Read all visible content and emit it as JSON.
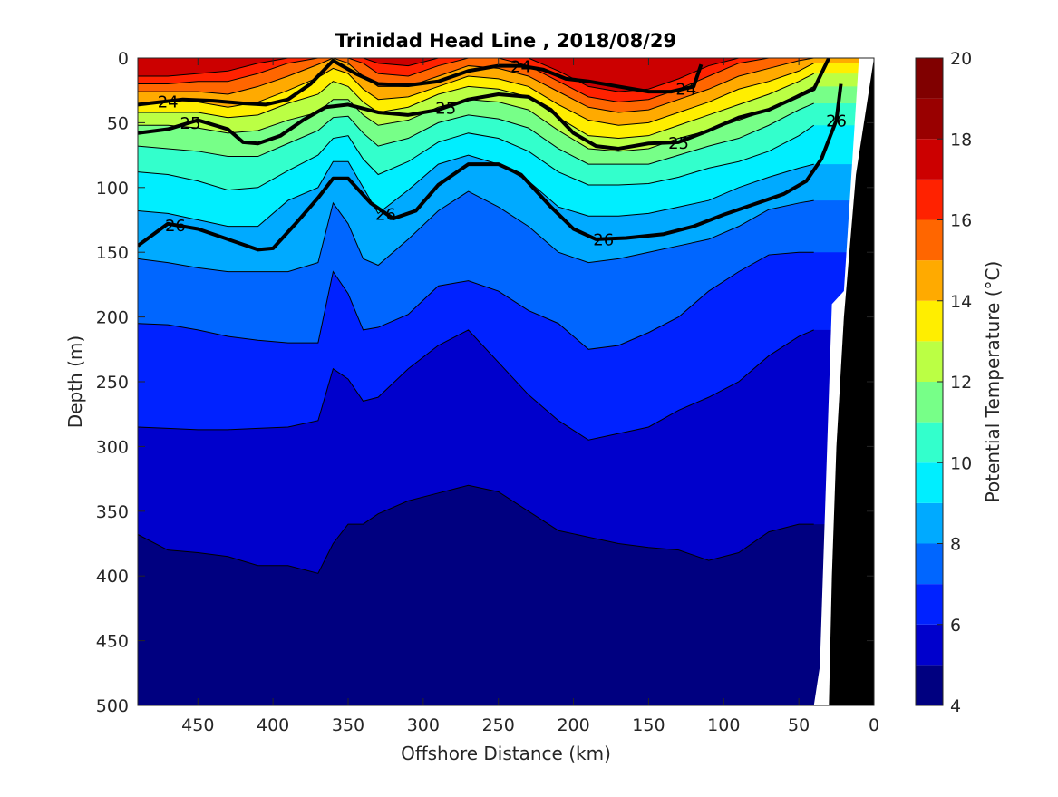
{
  "chart_data": {
    "type": "heatmap",
    "subtype": "filled-contour",
    "title": "Trinidad Head Line , 2018/08/29",
    "xlabel": "Offshore Distance (km)",
    "ylabel": "Depth (m)",
    "colorbar_label": "Potential Temperature (°C)",
    "x_reversed": true,
    "y_reversed": true,
    "xlim": [
      490,
      0
    ],
    "ylim": [
      0,
      500
    ],
    "clim": [
      4,
      20
    ],
    "x_ticks": [
      450,
      400,
      350,
      300,
      250,
      200,
      150,
      100,
      50,
      0
    ],
    "y_ticks": [
      0,
      50,
      100,
      150,
      200,
      250,
      300,
      350,
      400,
      450,
      500
    ],
    "colorbar_ticks": [
      4,
      6,
      8,
      10,
      12,
      14,
      16,
      18,
      20
    ],
    "colormap": [
      "#000080",
      "#0000CC",
      "#0022FF",
      "#0066FF",
      "#00AAFF",
      "#00EEFF",
      "#33FFCC",
      "#77FF88",
      "#BBFF44",
      "#FFEE00",
      "#FFAA00",
      "#FF6600",
      "#FF2200",
      "#CC0000",
      "#990000",
      "#800000"
    ],
    "grid": false,
    "legend": "colorbar-right",
    "bathymetry_color": "#000000",
    "isotherm_depths": {
      "x": [
        490,
        470,
        450,
        430,
        410,
        390,
        370,
        360,
        350,
        340,
        330,
        310,
        290,
        270,
        250,
        230,
        210,
        190,
        170,
        150,
        130,
        110,
        90,
        70,
        50,
        40
      ],
      "t4_deg": [
        null,
        null,
        null,
        null,
        null,
        null,
        null,
        null,
        null,
        null,
        null,
        null,
        null,
        490,
        475,
        490,
        null,
        null,
        null,
        null,
        null,
        null,
        null,
        null,
        null,
        null
      ],
      "t5_deg": [
        368,
        380,
        382,
        385,
        392,
        392,
        398,
        375,
        360,
        360,
        352,
        342,
        336,
        330,
        335,
        350,
        365,
        370,
        375,
        378,
        380,
        388,
        382,
        366,
        360,
        360
      ],
      "t6_deg": [
        285,
        286,
        287,
        287,
        286,
        285,
        280,
        240,
        248,
        265,
        262,
        240,
        222,
        210,
        235,
        260,
        280,
        295,
        290,
        285,
        272,
        262,
        250,
        230,
        215,
        210
      ],
      "t7_deg": [
        205,
        206,
        210,
        215,
        218,
        220,
        220,
        165,
        182,
        210,
        208,
        198,
        176,
        172,
        180,
        195,
        205,
        225,
        222,
        212,
        200,
        180,
        165,
        152,
        150,
        150
      ],
      "t8_deg": [
        155,
        158,
        162,
        165,
        165,
        165,
        158,
        112,
        128,
        155,
        160,
        140,
        118,
        103,
        115,
        130,
        150,
        158,
        155,
        150,
        145,
        140,
        130,
        117,
        112,
        110
      ],
      "t9_deg": [
        118,
        120,
        125,
        130,
        130,
        110,
        100,
        80,
        80,
        100,
        120,
        102,
        82,
        75,
        82,
        95,
        115,
        122,
        122,
        120,
        115,
        110,
        100,
        92,
        85,
        82
      ],
      "t10_deg": [
        88,
        90,
        95,
        102,
        100,
        87,
        75,
        62,
        60,
        78,
        90,
        80,
        65,
        58,
        62,
        72,
        88,
        98,
        98,
        97,
        92,
        85,
        80,
        72,
        60,
        52
      ],
      "t11_deg": [
        68,
        70,
        72,
        76,
        76,
        66,
        56,
        46,
        45,
        58,
        68,
        62,
        50,
        44,
        47,
        54,
        70,
        82,
        82,
        82,
        75,
        68,
        62,
        52,
        40,
        35
      ],
      "t12_deg": [
        52,
        52,
        54,
        58,
        56,
        48,
        42,
        32,
        32,
        44,
        52,
        48,
        38,
        32,
        34,
        40,
        56,
        70,
        72,
        70,
        62,
        56,
        48,
        40,
        28,
        22
      ],
      "t13_deg": [
        42,
        42,
        42,
        46,
        44,
        35,
        28,
        18,
        22,
        34,
        42,
        38,
        28,
        22,
        24,
        30,
        46,
        60,
        62,
        60,
        52,
        44,
        36,
        28,
        18,
        12
      ],
      "t14_deg": [
        34,
        34,
        34,
        38,
        34,
        25,
        15,
        8,
        12,
        24,
        32,
        30,
        22,
        14,
        16,
        22,
        36,
        48,
        52,
        50,
        42,
        34,
        24,
        18,
        10,
        4
      ],
      "t15_deg": [
        26,
        26,
        26,
        28,
        22,
        14,
        5,
        0,
        4,
        14,
        22,
        22,
        14,
        6,
        8,
        14,
        26,
        38,
        42,
        40,
        32,
        24,
        14,
        8,
        2,
        0
      ],
      "t16_deg": [
        20,
        20,
        18,
        18,
        12,
        4,
        0,
        0,
        0,
        4,
        12,
        14,
        6,
        0,
        0,
        6,
        18,
        30,
        34,
        32,
        24,
        14,
        4,
        0,
        0,
        0
      ],
      "t17_deg": [
        14,
        14,
        12,
        10,
        4,
        0,
        0,
        0,
        0,
        0,
        4,
        6,
        0,
        0,
        0,
        0,
        10,
        22,
        26,
        24,
        16,
        6,
        0,
        0,
        0,
        0
      ]
    },
    "density_contours": [
      {
        "label": "24",
        "x": [
          490,
          460,
          440,
          420,
          405,
          390,
          375,
          360,
          345,
          330,
          310,
          290,
          270,
          250,
          235,
          220,
          205,
          190,
          170,
          150,
          135,
          120,
          115
        ],
        "depth": [
          36,
          32,
          33,
          35,
          36,
          32,
          20,
          2,
          12,
          20,
          21,
          18,
          10,
          6,
          6,
          9,
          16,
          18,
          22,
          26,
          26,
          22,
          5
        ]
      },
      {
        "label": "25",
        "x": [
          490,
          470,
          450,
          430,
          420,
          410,
          395,
          380,
          365,
          350,
          330,
          310,
          290,
          270,
          250,
          230,
          215,
          200,
          185,
          170,
          150,
          130,
          110,
          90,
          70,
          55,
          40,
          30
        ],
        "depth": [
          58,
          55,
          48,
          55,
          65,
          66,
          60,
          48,
          38,
          36,
          42,
          44,
          40,
          32,
          28,
          30,
          40,
          58,
          68,
          70,
          66,
          65,
          56,
          46,
          40,
          32,
          24,
          0
        ]
      },
      {
        "label": "26",
        "x": [
          490,
          470,
          450,
          430,
          410,
          400,
          385,
          370,
          360,
          350,
          335,
          320,
          305,
          290,
          270,
          250,
          235,
          215,
          200,
          185,
          165,
          140,
          120,
          100,
          80,
          60,
          45,
          35,
          25,
          22
        ],
        "depth": [
          145,
          128,
          132,
          140,
          148,
          147,
          128,
          108,
          93,
          93,
          112,
          124,
          118,
          98,
          82,
          82,
          90,
          115,
          132,
          140,
          139,
          136,
          130,
          121,
          113,
          105,
          95,
          78,
          48,
          20
        ]
      }
    ],
    "bathymetry": {
      "x": [
        0,
        12,
        20,
        25,
        28,
        30
      ],
      "depth": [
        0,
        90,
        200,
        300,
        400,
        500
      ]
    },
    "no_data_region": {
      "x": [
        10,
        20,
        28,
        36,
        40
      ],
      "depth": [
        0,
        180,
        190,
        470,
        500
      ]
    }
  }
}
